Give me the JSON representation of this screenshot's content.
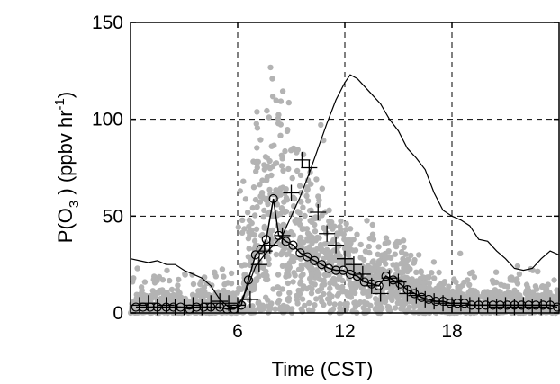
{
  "chart_data": {
    "type": "scatter",
    "title": "",
    "xlabel": "Time  (CST)",
    "ylabel": {
      "prefix": "P(O",
      "sub": "3",
      "middle": " ) (ppbv hr",
      "sup": "-1",
      "suffix": ")"
    },
    "xlim": [
      0,
      24
    ],
    "ylim": [
      0,
      150
    ],
    "xticks": [
      6,
      12,
      18
    ],
    "yticks": [
      0,
      50,
      100,
      150
    ],
    "grid": true,
    "grid_style": "dashed",
    "legend": "none",
    "colors": {
      "scatter": "#b3b3b3",
      "line": "#000000",
      "circles": "#000000",
      "plus": "#000000"
    },
    "series": [
      {
        "kind": "thin-line",
        "x": [
          0,
          0.5,
          1,
          1.5,
          2,
          2.5,
          3,
          3.5,
          4,
          4.5,
          5,
          5.5,
          6,
          6.5,
          7,
          7.5,
          8,
          8.5,
          9,
          9.5,
          10,
          10.5,
          11,
          11.5,
          12,
          12.3,
          12.7,
          13,
          13.5,
          14,
          14.5,
          15,
          15.5,
          16,
          16.5,
          17,
          17.5,
          18,
          18.5,
          19,
          19.5,
          20,
          20.5,
          21,
          21.5,
          22,
          22.5,
          23,
          23.5,
          24
        ],
        "y": [
          28,
          27,
          26,
          27,
          25,
          25,
          22,
          20,
          18,
          14,
          7,
          3,
          3,
          12,
          24,
          30,
          35,
          40,
          50,
          60,
          72,
          85,
          98,
          110,
          119,
          123,
          121,
          118,
          113,
          108,
          100,
          94,
          85,
          80,
          74,
          62,
          53,
          50,
          48,
          45,
          38,
          37,
          32,
          28,
          23,
          22,
          23,
          28,
          32,
          30
        ]
      },
      {
        "kind": "circle-line",
        "x": [
          0.3,
          0.7,
          1.1,
          1.5,
          2,
          2.4,
          2.8,
          3.3,
          3.7,
          4.1,
          4.5,
          5,
          5.4,
          5.8,
          6.2,
          6.6,
          7,
          7.3,
          7.6,
          8,
          8.3,
          8.7,
          9.1,
          9.5,
          9.9,
          10.3,
          10.7,
          11.1,
          11.5,
          11.9,
          12.3,
          12.7,
          13.1,
          13.5,
          13.9,
          14.3,
          14.7,
          15.1,
          15.5,
          15.9,
          16.3,
          16.7,
          17.1,
          17.5,
          17.9,
          18.3,
          18.7,
          19.1,
          19.5,
          19.9,
          20.3,
          20.7,
          21.1,
          21.5,
          21.9,
          22.3,
          22.7,
          23.1,
          23.5,
          23.9
        ],
        "y": [
          3,
          3,
          3,
          3,
          3,
          3,
          3,
          2,
          3,
          3,
          3,
          3,
          2,
          2,
          4,
          17,
          30,
          33,
          38,
          59,
          40,
          37,
          35,
          31,
          29,
          27,
          25,
          23,
          22,
          22,
          20,
          19,
          16,
          15,
          14,
          19,
          17,
          15,
          12,
          10,
          8,
          7,
          6,
          6,
          5,
          5,
          5,
          4,
          4,
          4,
          4,
          4,
          4,
          4,
          4,
          4,
          4,
          4,
          4,
          3
        ]
      },
      {
        "kind": "plus",
        "x": [
          0.5,
          1,
          1.5,
          2,
          2.5,
          3,
          3.5,
          4,
          4.5,
          5,
          5.5,
          6,
          6.7,
          7.2,
          7.5,
          7.8,
          8.5,
          9,
          9.6,
          10,
          10.5,
          11,
          11.5,
          12,
          12.5,
          13,
          13.5,
          14,
          14.5,
          15,
          15.5,
          16,
          16.5,
          17,
          17.5,
          18,
          18.5,
          19,
          19.5,
          20,
          20.5,
          21,
          21.5,
          22,
          22.5,
          23,
          23.5
        ],
        "y": [
          4,
          5,
          3,
          4,
          3,
          3,
          4,
          3,
          5,
          6,
          5,
          4,
          7,
          25,
          32,
          35,
          40,
          62,
          79,
          75,
          52,
          41,
          35,
          28,
          25,
          20,
          14,
          10,
          18,
          16,
          10,
          9,
          7,
          6,
          5,
          4,
          5,
          4,
          4,
          4,
          3,
          4,
          3,
          4,
          3,
          3,
          4
        ]
      }
    ]
  }
}
